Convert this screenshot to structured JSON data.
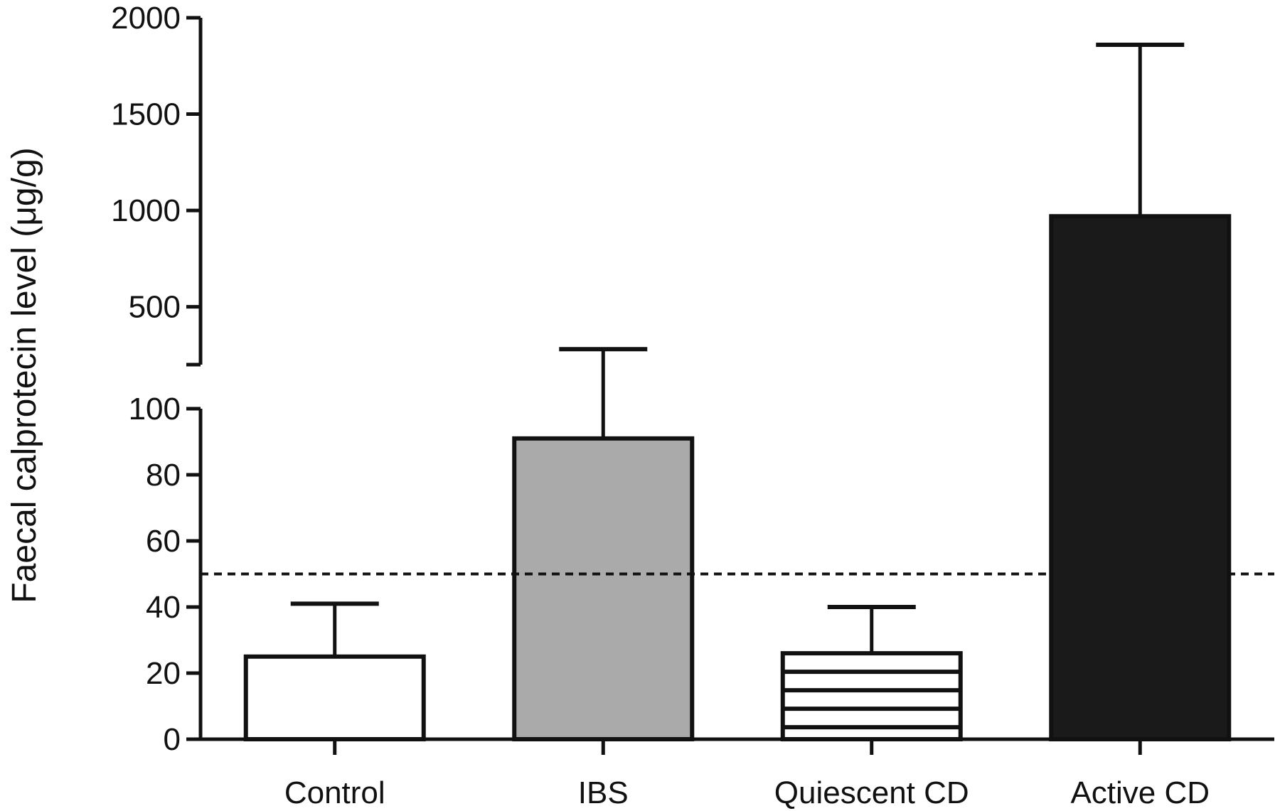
{
  "chart_data": {
    "type": "bar",
    "title": "",
    "xlabel": "",
    "ylabel": "Faecal calprotecin level (μg/g)",
    "categories": [
      "Control",
      "IBS",
      "Quiescent CD",
      "Active CD"
    ],
    "values": [
      25,
      91,
      26,
      970
    ],
    "error_upper": [
      41,
      280,
      40,
      1860
    ],
    "fills": [
      "white",
      "gray",
      "horizontal-stripes",
      "black"
    ],
    "colors": {
      "gray": "#aaaaaa",
      "black": "#1a1a1a",
      "white": "#ffffff",
      "stroke": "#111111"
    },
    "reference_line": {
      "value": 50,
      "style": "dashed"
    },
    "broken_axis": {
      "lower": {
        "range": [
          0,
          100
        ],
        "ticks": [
          0,
          20,
          40,
          60,
          80,
          100
        ]
      },
      "upper": {
        "range": [
          200,
          2000
        ],
        "ticks": [
          500,
          1000,
          1500,
          2000
        ]
      }
    },
    "tick_labels_lower": [
      "0",
      "20",
      "40",
      "60",
      "80",
      "100"
    ],
    "tick_labels_upper": [
      "500",
      "1000",
      "1500",
      "2000"
    ],
    "grid": false,
    "legend": "none"
  }
}
